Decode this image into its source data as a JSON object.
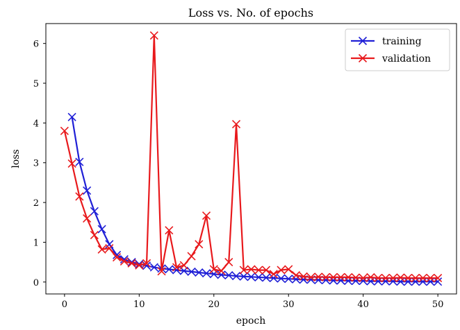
{
  "chart_data": {
    "type": "line",
    "title": "Loss vs. No. of epochs",
    "xlabel": "epoch",
    "ylabel": "loss",
    "xlim": [
      -2.5,
      52.5
    ],
    "ylim": [
      -0.3,
      6.5
    ],
    "xticks": [
      0,
      10,
      20,
      30,
      40,
      50
    ],
    "yticks": [
      0,
      1,
      2,
      3,
      4,
      5,
      6
    ],
    "grid": false,
    "legend_position": "top-right",
    "series": [
      {
        "name": "training",
        "color": "#1f1fd6",
        "marker": "x",
        "x": [
          1,
          2,
          3,
          4,
          5,
          6,
          7,
          8,
          9,
          10,
          11,
          12,
          13,
          14,
          15,
          16,
          17,
          18,
          19,
          20,
          21,
          22,
          23,
          24,
          25,
          26,
          27,
          28,
          29,
          30,
          31,
          32,
          33,
          34,
          35,
          36,
          37,
          38,
          39,
          40,
          41,
          42,
          43,
          44,
          45,
          46,
          47,
          48,
          49,
          50
        ],
        "values": [
          4.15,
          3.02,
          2.3,
          1.78,
          1.33,
          0.95,
          0.68,
          0.57,
          0.5,
          0.45,
          0.41,
          0.37,
          0.34,
          0.32,
          0.3,
          0.28,
          0.26,
          0.24,
          0.22,
          0.2,
          0.18,
          0.17,
          0.15,
          0.14,
          0.13,
          0.12,
          0.11,
          0.1,
          0.09,
          0.08,
          0.07,
          0.06,
          0.06,
          0.05,
          0.05,
          0.04,
          0.04,
          0.03,
          0.03,
          0.03,
          0.02,
          0.02,
          0.02,
          0.02,
          0.01,
          0.01,
          0.01,
          0.01,
          0.01,
          0.01
        ]
      },
      {
        "name": "validation",
        "color": "#e8191c",
        "marker": "x",
        "x": [
          0,
          1,
          2,
          3,
          4,
          5,
          6,
          7,
          8,
          9,
          10,
          11,
          12,
          13,
          14,
          15,
          16,
          17,
          18,
          19,
          20,
          21,
          22,
          23,
          24,
          25,
          26,
          27,
          28,
          29,
          30,
          31,
          32,
          33,
          34,
          35,
          36,
          37,
          38,
          39,
          40,
          41,
          42,
          43,
          44,
          45,
          46,
          47,
          48,
          49,
          50
        ],
        "values": [
          3.8,
          2.98,
          2.15,
          1.6,
          1.18,
          0.82,
          0.85,
          0.62,
          0.52,
          0.47,
          0.42,
          0.47,
          6.2,
          0.27,
          1.3,
          0.37,
          0.42,
          0.65,
          0.95,
          1.67,
          0.32,
          0.28,
          0.5,
          3.97,
          0.3,
          0.32,
          0.3,
          0.3,
          0.2,
          0.3,
          0.32,
          0.17,
          0.14,
          0.12,
          0.13,
          0.12,
          0.12,
          0.12,
          0.12,
          0.11,
          0.1,
          0.12,
          0.1,
          0.1,
          0.1,
          0.11,
          0.1,
          0.1,
          0.1,
          0.1,
          0.1
        ]
      }
    ]
  }
}
